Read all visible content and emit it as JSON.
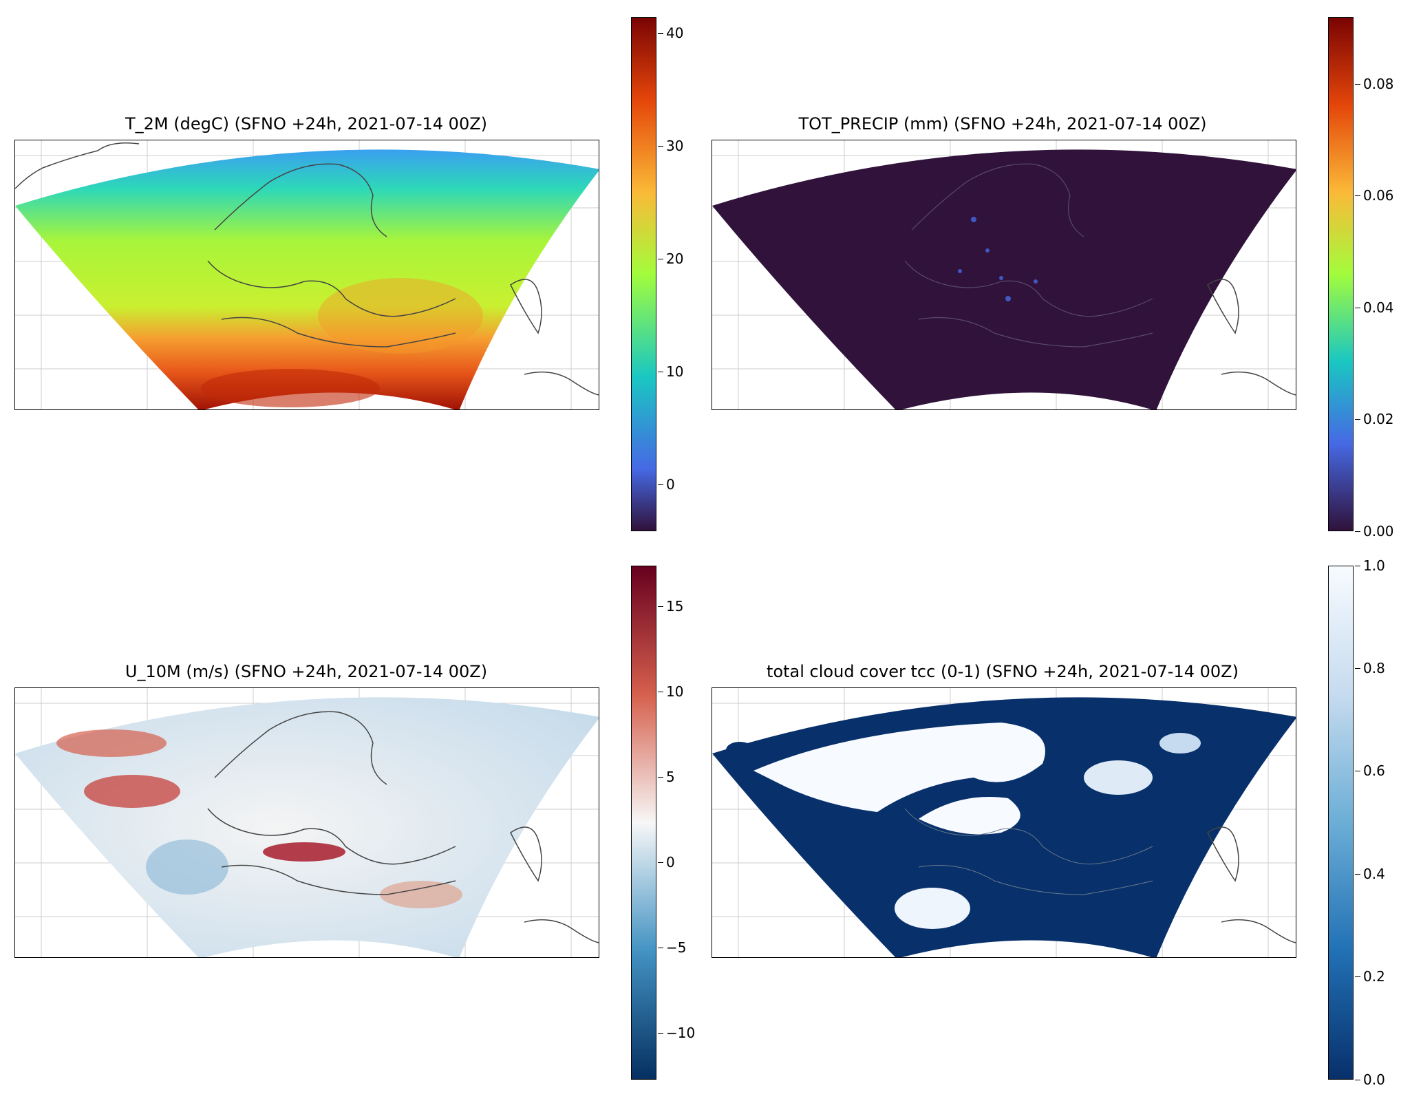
{
  "panels": [
    {
      "id": "t2m",
      "title": "T_2M (degC)  (SFNO +24h, 2021-07-14 00Z)",
      "colormap": "turbo",
      "colorbar": {
        "min": -4,
        "max": 41.5,
        "ticks": [
          "40",
          "30",
          "20",
          "10",
          "0"
        ],
        "tick_values": [
          40,
          30,
          20,
          10,
          0
        ]
      }
    },
    {
      "id": "tot_precip",
      "title": "TOT_PRECIP (mm)  (SFNO +24h, 2021-07-14 00Z)",
      "colormap": "turbo",
      "colorbar": {
        "min": 0,
        "max": 0.092,
        "ticks": [
          "0.08",
          "0.06",
          "0.04",
          "0.02",
          "0.00"
        ],
        "tick_values": [
          0.08,
          0.06,
          0.04,
          0.02,
          0.0
        ]
      }
    },
    {
      "id": "u10m",
      "title": "U_10M (m/s)  (SFNO +24h, 2021-07-14 00Z)",
      "colormap": "RdBu_r",
      "colorbar": {
        "min": -12.8,
        "max": 17.3,
        "ticks": [
          "15",
          "10",
          "5",
          "0",
          "−5",
          "−10"
        ],
        "tick_values": [
          15,
          10,
          5,
          0,
          -5,
          -10
        ]
      }
    },
    {
      "id": "tcc",
      "title": "total cloud cover tcc (0-1)  (SFNO +24h, 2021-07-14 00Z)",
      "colormap": "Blues_r",
      "colorbar": {
        "min": 0,
        "max": 1,
        "ticks": [
          "1.0",
          "0.8",
          "0.6",
          "0.4",
          "0.2",
          "0.0"
        ],
        "tick_values": [
          1.0,
          0.8,
          0.6,
          0.4,
          0.2,
          0.0
        ]
      }
    }
  ],
  "colors": {
    "turbo": [
      "#30123b",
      "#4669e4",
      "#1ac7c2",
      "#a2fc3c",
      "#fbb938",
      "#e4460a",
      "#7a0403"
    ],
    "RdBu_r": [
      "#053061",
      "#4393c3",
      "#f7f7f7",
      "#d6604d",
      "#67001f"
    ],
    "Blues_r": [
      "#08306b",
      "#2171b5",
      "#6baed6",
      "#c6dbef",
      "#f7fbff"
    ],
    "coastline": "#444444",
    "gridline": "#cccccc"
  }
}
